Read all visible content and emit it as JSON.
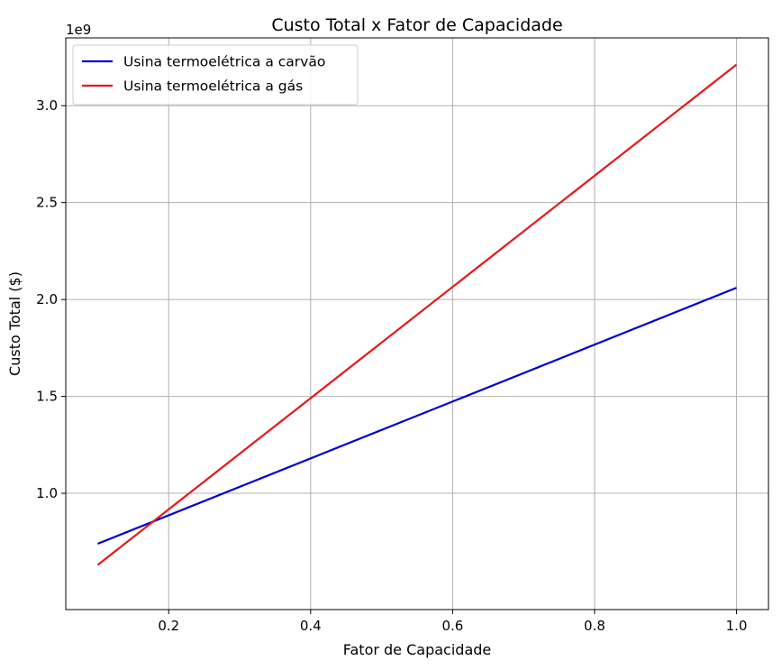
{
  "chart_data": {
    "type": "line",
    "title": "Custo Total x Fator de Capacidade",
    "xlabel": "Fator de Capacidade",
    "ylabel": "Custo Total ($)",
    "y_offset_label": "1e9",
    "xlim": [
      0.055,
      1.045
    ],
    "ylim": [
      400000000.0,
      3350000000.0
    ],
    "x_ticks": [
      0.2,
      0.4,
      0.6,
      0.8,
      1.0
    ],
    "x_tick_labels": [
      "0.2",
      "0.4",
      "0.6",
      "0.8",
      "1.0"
    ],
    "y_ticks": [
      1000000000.0,
      1500000000.0,
      2000000000.0,
      2500000000.0,
      3000000000.0
    ],
    "y_tick_labels": [
      "1.0",
      "1.5",
      "2.0",
      "2.5",
      "3.0"
    ],
    "grid": true,
    "legend_position": "upper-left",
    "series": [
      {
        "name": "Usina termoelétrica a carvão",
        "color": "#0000cc",
        "x": [
          0.1,
          1.0
        ],
        "y": [
          739700000.0,
          2060700000.0
        ]
      },
      {
        "name": "Usina termoelétrica a gás",
        "color": "#e31a1c",
        "x": [
          0.1,
          1.0
        ],
        "y": [
          630400000.0,
          3212300000.0
        ]
      }
    ]
  }
}
